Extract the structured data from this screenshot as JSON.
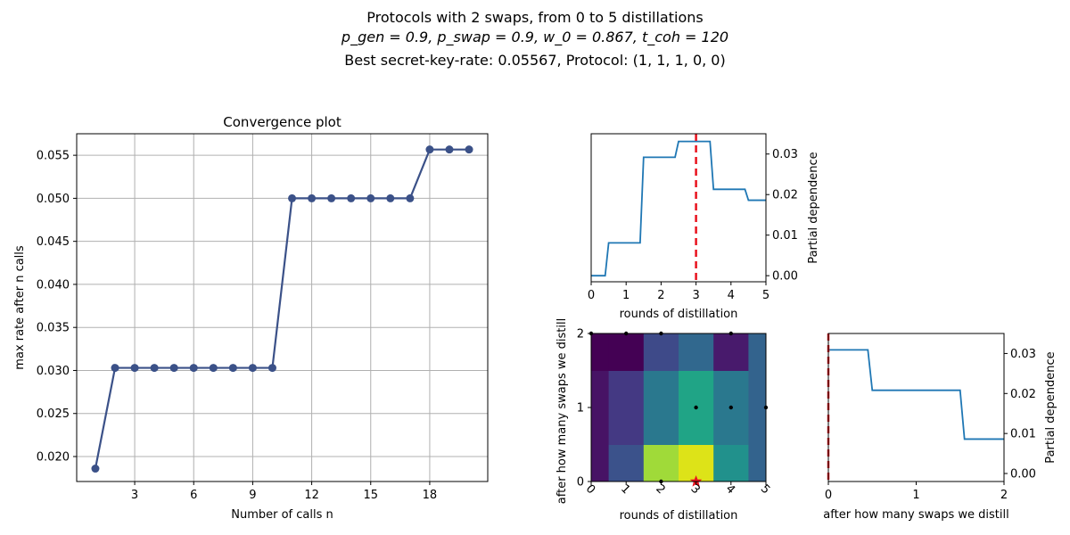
{
  "suptitle": {
    "line1": "Protocols with 2 swaps, from 0 to 5 distillations",
    "line2": "p_gen = 0.9, p_swap = 0.9, w_0 = 0.867, t_coh = 120",
    "line3": "Best secret-key-rate: 0.05567, Protocol: (1, 1, 1, 0, 0)"
  },
  "chart_data": [
    {
      "type": "line",
      "title": "Convergence plot",
      "xlabel": "Number of calls n",
      "ylabel": "max rate after n calls",
      "xlim": [
        0.05,
        20.95
      ],
      "ylim": [
        0.0171,
        0.0575
      ],
      "x_ticks": [
        3,
        6,
        9,
        12,
        15,
        18
      ],
      "y_ticks": [
        0.02,
        0.025,
        0.03,
        0.035,
        0.04,
        0.045,
        0.05,
        0.055
      ],
      "grid": true,
      "color": "#3b5188",
      "x": [
        1,
        2,
        3,
        4,
        5,
        6,
        7,
        8,
        9,
        10,
        11,
        12,
        13,
        14,
        15,
        16,
        17,
        18,
        19,
        20
      ],
      "y": [
        0.0186,
        0.0303,
        0.0303,
        0.0303,
        0.0303,
        0.0303,
        0.0303,
        0.0303,
        0.0303,
        0.0303,
        0.05,
        0.05,
        0.05,
        0.05,
        0.05,
        0.05,
        0.05,
        0.05567,
        0.05567,
        0.05567
      ]
    },
    {
      "type": "line",
      "title": "",
      "xlabel": "rounds of distillation",
      "ylabel": "Partial dependence",
      "xlim": [
        0,
        5
      ],
      "ylim": [
        -0.0015,
        0.035
      ],
      "x_ticks": [
        0,
        1,
        2,
        3,
        4,
        5
      ],
      "y_ticks": [
        0.0,
        0.01,
        0.02,
        0.03
      ],
      "y_axis_side": "right",
      "color": "#1f77b4",
      "x": [
        0,
        0.4,
        0.5,
        1.4,
        1.5,
        2.4,
        2.5,
        3.4,
        3.5,
        4.4,
        4.5,
        5
      ],
      "y": [
        0.0,
        0.0,
        0.0081,
        0.0081,
        0.0292,
        0.0292,
        0.0331,
        0.0331,
        0.0213,
        0.0213,
        0.0186,
        0.0186
      ],
      "marker_line": {
        "x": 3,
        "color": "#e8121d",
        "style": "dashed"
      }
    },
    {
      "type": "heatmap",
      "title": "",
      "xlabel": "rounds of distillation",
      "ylabel": "after how many swaps we distill",
      "xlim": [
        0,
        5
      ],
      "ylim": [
        0,
        2
      ],
      "x_ticks": [
        0,
        1,
        2,
        3,
        4,
        5
      ],
      "y_ticks": [
        0,
        1,
        2
      ],
      "x_bins": [
        0,
        0.5,
        1.5,
        2.5,
        3.5,
        4.5,
        5
      ],
      "y_bins": [
        0,
        0.5,
        1.5,
        2
      ],
      "cell_colors": [
        [
          "#471365",
          "#3b528b",
          "#a0da39",
          "#dde318",
          "#21918c",
          "#33638d"
        ],
        [
          "#471365",
          "#443983",
          "#2a788e",
          "#20a486",
          "#2a788e",
          "#33638d"
        ],
        [
          "#440154",
          "#440154",
          "#3e4a89",
          "#31688e",
          "#481a6c",
          "#33638d"
        ]
      ],
      "sample_points": [
        [
          2,
          0
        ],
        [
          3,
          1
        ],
        [
          4,
          1
        ],
        [
          5,
          1
        ],
        [
          0,
          2
        ],
        [
          1,
          2
        ],
        [
          2,
          2
        ],
        [
          4,
          2
        ]
      ],
      "best_point": {
        "x": 3,
        "y": 0,
        "color": "#e8121d"
      }
    },
    {
      "type": "line",
      "title": "",
      "xlabel": "after how many swaps we distill",
      "ylabel": "Partial dependence",
      "xlim": [
        0,
        2
      ],
      "ylim": [
        -0.002,
        0.035
      ],
      "x_ticks": [
        0,
        1,
        2
      ],
      "y_ticks": [
        0.0,
        0.01,
        0.02,
        0.03
      ],
      "y_axis_side": "right",
      "color": "#1f77b4",
      "x": [
        0,
        0.45,
        0.5,
        1.5,
        1.55,
        2
      ],
      "y": [
        0.0309,
        0.0309,
        0.0208,
        0.0208,
        0.0086,
        0.0086
      ],
      "marker_line": {
        "x": 0,
        "color": "#e8121d",
        "style": "dashed"
      }
    }
  ]
}
